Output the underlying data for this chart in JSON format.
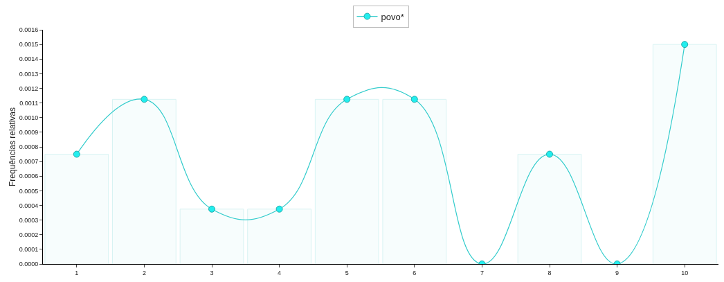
{
  "chart_data": {
    "type": "line",
    "ylabel": "Frequências relativas",
    "categories": [
      "1",
      "2",
      "3",
      "4",
      "5",
      "6",
      "7",
      "8",
      "9",
      "10"
    ],
    "series": [
      {
        "type": "bar",
        "color": "#d8f3f3",
        "values": [
          0.00075,
          0.001125,
          0.000375,
          0.000375,
          0.001125,
          0.001125,
          0,
          0.00075,
          0,
          0.0015
        ]
      },
      {
        "name": "povo*",
        "color": "#33cccc",
        "values": [
          0.00075,
          0.001125,
          0.000375,
          0.000375,
          0.001125,
          0.001125,
          0,
          0.00075,
          0,
          0.0015
        ]
      }
    ],
    "ylim": [
      0,
      0.0016
    ],
    "yticks": [
      {
        "value": 0,
        "label": "0.0000"
      },
      {
        "value": 0.0001,
        "label": "0.0001"
      },
      {
        "value": 0.0002,
        "label": "0.0002"
      },
      {
        "value": 0.0003,
        "label": "0.0003"
      },
      {
        "value": 0.0004,
        "label": "0.0004"
      },
      {
        "value": 0.0005,
        "label": "0.0005"
      },
      {
        "value": 0.0006,
        "label": "0.0006"
      },
      {
        "value": 0.0007,
        "label": "0.0007"
      },
      {
        "value": 0.0008,
        "label": "0.0008"
      },
      {
        "value": 0.0009,
        "label": "0.0009"
      },
      {
        "value": 0.001,
        "label": "0.0010"
      },
      {
        "value": 0.0011,
        "label": "0.0011"
      },
      {
        "value": 0.0012,
        "label": "0.0012"
      },
      {
        "value": 0.0013,
        "label": "0.0013"
      },
      {
        "value": 0.0014,
        "label": "0.0014"
      },
      {
        "value": 0.0015,
        "label": "0.0015"
      },
      {
        "value": 0.0016,
        "label": "0.0016"
      }
    ],
    "legend": "top",
    "marker": "circle"
  }
}
